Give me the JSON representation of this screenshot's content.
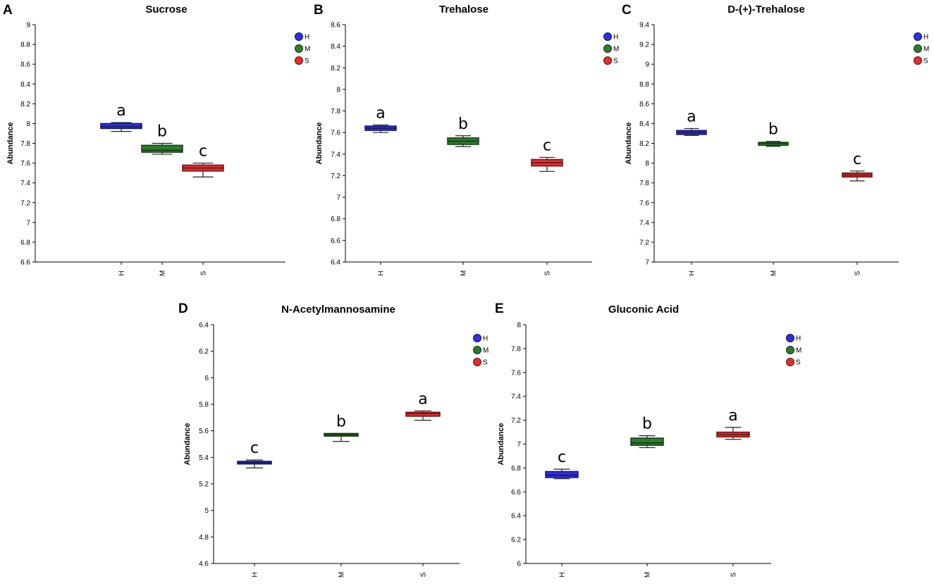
{
  "figure": {
    "colors": {
      "H": "#2f2fe6",
      "M": "#2e7d2e",
      "S": "#e62e2e"
    }
  },
  "chart_data": [
    {
      "id": "A",
      "panel_letter": "A",
      "type": "boxplot",
      "title": "Sucrose",
      "xlabel": "",
      "ylabel": "Abundance",
      "ylim": [
        6.6,
        9
      ],
      "yticks": [
        6.6,
        6.8,
        7,
        7.2,
        7.4,
        7.6,
        7.8,
        8,
        8.2,
        8.4,
        8.6,
        8.8,
        9
      ],
      "ytick_labels": [
        "6.6",
        "6.8",
        "7",
        "7.2",
        "7.4",
        "7.6",
        "7.8",
        "8",
        "8.2",
        "8.4",
        "8.6",
        "8.8",
        "9"
      ],
      "categories": [
        "H",
        "M",
        "S"
      ],
      "legend": [
        "H",
        "M",
        "S"
      ],
      "boxes": [
        {
          "group": "H",
          "min": 7.92,
          "q1": 7.95,
          "median": 7.97,
          "q3": 8.0,
          "max": 8.01,
          "label": "a"
        },
        {
          "group": "M",
          "min": 7.69,
          "q1": 7.71,
          "median": 7.73,
          "q3": 7.78,
          "max": 7.8,
          "label": "b"
        },
        {
          "group": "S",
          "min": 7.46,
          "q1": 7.52,
          "median": 7.55,
          "q3": 7.58,
          "max": 7.6,
          "label": "c"
        }
      ]
    },
    {
      "id": "B",
      "panel_letter": "B",
      "type": "boxplot",
      "title": "Trehalose",
      "xlabel": "",
      "ylabel": "Abundance",
      "ylim": [
        6.4,
        8.6
      ],
      "yticks": [
        6.4,
        6.6,
        6.8,
        7,
        7.2,
        7.4,
        7.6,
        7.8,
        8,
        8.2,
        8.4,
        8.6
      ],
      "ytick_labels": [
        "6.4",
        "6.6",
        "6.8",
        "7",
        "7.2",
        "7.4",
        "7.6",
        "7.8",
        "8",
        "8.2",
        "8.4",
        "8.6"
      ],
      "categories": [
        "H",
        "M",
        "S"
      ],
      "legend": [
        "H",
        "M",
        "S"
      ],
      "boxes": [
        {
          "group": "H",
          "min": 7.6,
          "q1": 7.62,
          "median": 7.64,
          "q3": 7.66,
          "max": 7.67,
          "label": "a"
        },
        {
          "group": "M",
          "min": 7.47,
          "q1": 7.49,
          "median": 7.52,
          "q3": 7.55,
          "max": 7.57,
          "label": "b"
        },
        {
          "group": "S",
          "min": 7.24,
          "q1": 7.29,
          "median": 7.32,
          "q3": 7.35,
          "max": 7.37,
          "label": "c"
        }
      ]
    },
    {
      "id": "C",
      "panel_letter": "C",
      "type": "boxplot",
      "title": "D-(+)-Trehalose",
      "xlabel": "",
      "ylabel": "Abundance",
      "ylim": [
        7,
        9.4
      ],
      "yticks": [
        7,
        7.2,
        7.4,
        7.6,
        7.8,
        8,
        8.2,
        8.4,
        8.6,
        8.8,
        9,
        9.2,
        9.4
      ],
      "ytick_labels": [
        "7",
        "7.2",
        "7.4",
        "7.6",
        "7.8",
        "8",
        "8.2",
        "8.4",
        "8.6",
        "8.8",
        "9",
        "9.2",
        "9.4"
      ],
      "categories": [
        "H",
        "M",
        "S"
      ],
      "legend": [
        "H",
        "M",
        "S"
      ],
      "boxes": [
        {
          "group": "H",
          "min": 8.28,
          "q1": 8.29,
          "median": 8.31,
          "q3": 8.33,
          "max": 8.35,
          "label": "a"
        },
        {
          "group": "M",
          "min": 8.17,
          "q1": 8.18,
          "median": 8.2,
          "q3": 8.21,
          "max": 8.22,
          "label": "b"
        },
        {
          "group": "S",
          "min": 7.82,
          "q1": 7.86,
          "median": 7.88,
          "q3": 7.9,
          "max": 7.92,
          "label": "c"
        }
      ]
    },
    {
      "id": "D",
      "panel_letter": "D",
      "type": "boxplot",
      "title": "N-Acetylmannosamine",
      "xlabel": "",
      "ylabel": "Abundance",
      "ylim": [
        4.6,
        6.4
      ],
      "yticks": [
        4.6,
        4.8,
        5,
        5.2,
        5.4,
        5.6,
        5.8,
        6,
        6.2,
        6.4
      ],
      "ytick_labels": [
        "4.6",
        "4.8",
        "5",
        "5.2",
        "5.4",
        "5.6",
        "5.8",
        "6",
        "6.2",
        "6.4"
      ],
      "categories": [
        "H",
        "M",
        "S"
      ],
      "legend": [
        "H",
        "M",
        "S"
      ],
      "boxes": [
        {
          "group": "H",
          "min": 5.32,
          "q1": 5.35,
          "median": 5.36,
          "q3": 5.37,
          "max": 5.38,
          "label": "c"
        },
        {
          "group": "M",
          "min": 5.52,
          "q1": 5.56,
          "median": 5.57,
          "q3": 5.58,
          "max": 5.58,
          "label": "b"
        },
        {
          "group": "S",
          "min": 5.68,
          "q1": 5.71,
          "median": 5.73,
          "q3": 5.74,
          "max": 5.75,
          "label": "a"
        }
      ]
    },
    {
      "id": "E",
      "panel_letter": "E",
      "type": "boxplot",
      "title": "Gluconic Acid",
      "xlabel": "",
      "ylabel": "Abundance",
      "ylim": [
        6,
        8
      ],
      "yticks": [
        6,
        6.2,
        6.4,
        6.6,
        6.8,
        7,
        7.2,
        7.4,
        7.6,
        7.8,
        8
      ],
      "ytick_labels": [
        "6",
        "6.2",
        "6.4",
        "6.6",
        "6.8",
        "7",
        "7.2",
        "7.4",
        "7.6",
        "7.8",
        "8"
      ],
      "categories": [
        "H",
        "M",
        "S"
      ],
      "legend": [
        "H",
        "M",
        "S"
      ],
      "boxes": [
        {
          "group": "H",
          "min": 6.71,
          "q1": 6.72,
          "median": 6.74,
          "q3": 6.77,
          "max": 6.79,
          "label": "c"
        },
        {
          "group": "M",
          "min": 6.97,
          "q1": 6.99,
          "median": 7.01,
          "q3": 7.05,
          "max": 7.07,
          "label": "b"
        },
        {
          "group": "S",
          "min": 7.04,
          "q1": 7.06,
          "median": 7.08,
          "q3": 7.1,
          "max": 7.14,
          "label": "a"
        }
      ]
    }
  ]
}
